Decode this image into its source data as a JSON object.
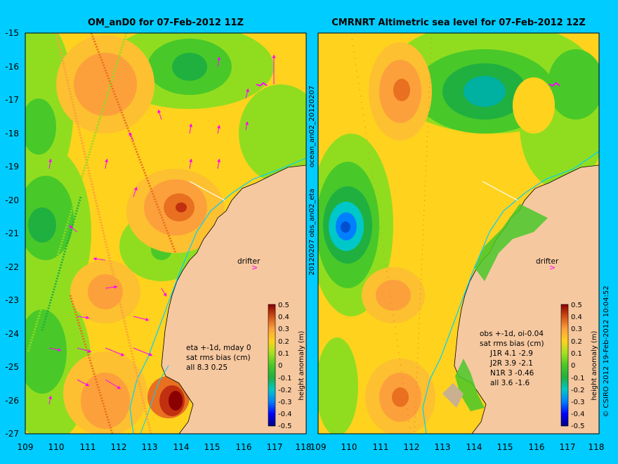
{
  "panels": [
    {
      "title": "OM_anD0 for 07-Feb-2012 11Z",
      "y_ticks": [
        "-15",
        "-16",
        "-17",
        "-18",
        "-19",
        "-20",
        "-21",
        "-22",
        "-23",
        "-24",
        "-25",
        "-26",
        "-27"
      ],
      "x_ticks": [
        "109",
        "110",
        "111",
        "112",
        "113",
        "114",
        "115",
        "116",
        "117",
        "118"
      ],
      "drifter_label": "drifter",
      "annotation_lines": [
        "eta +-1d, mday 0",
        "sat rms bias (cm)",
        "all 8.3 0.25"
      ],
      "colorbar_ticks": [
        "0.5",
        "0.4",
        "0.3",
        "0.2",
        "0.1",
        "0",
        "-0.1",
        "-0.2",
        "-0.3",
        "-0.4",
        "-0.5"
      ],
      "colorbar_label": "height anomaly (m)"
    },
    {
      "title": "CMRNRT Altimetric sea level  for 07-Feb-2012 12Z",
      "y_ticks": [],
      "x_ticks": [
        "109",
        "110",
        "111",
        "112",
        "113",
        "114",
        "115",
        "116",
        "117",
        "118"
      ],
      "drifter_label": "drifter",
      "annotation_lines": [
        "obs +-1d, oi-0.04",
        "sat rms bias (cm)",
        "J1R   4.1  -2.9",
        "J2R   3.9  -2.1",
        "N1R    3  -0.46",
        "all  3.6  -1.6"
      ],
      "colorbar_ticks": [
        "0.5",
        "0.4",
        "0.3",
        "0.2",
        "0.1",
        "0",
        "-0.1",
        "-0.2",
        "-0.3",
        "-0.4",
        "-0.5"
      ],
      "colorbar_label": "height anomaly (m)"
    }
  ],
  "vertical_labels": {
    "middle_top": "ocean_an02_20120207",
    "middle_bottom": "20120207 obs_an02_eta",
    "right_edge": "© CSIRO 2012  19-Feb-2012 10:04:52"
  },
  "colors": {
    "background": "#00ccff",
    "land": "#f6c8a0",
    "colormap": [
      "#00007f",
      "#0000ff",
      "#0080ff",
      "#00c8c8",
      "#20b040",
      "#49c829",
      "#90dd20",
      "#d8e628",
      "#ffd21e",
      "#fca03c",
      "#e87020",
      "#c03010",
      "#8b0000"
    ]
  },
  "map_extent": {
    "lon_range": [
      109,
      118
    ],
    "lat_range": [
      -27,
      -15
    ]
  }
}
